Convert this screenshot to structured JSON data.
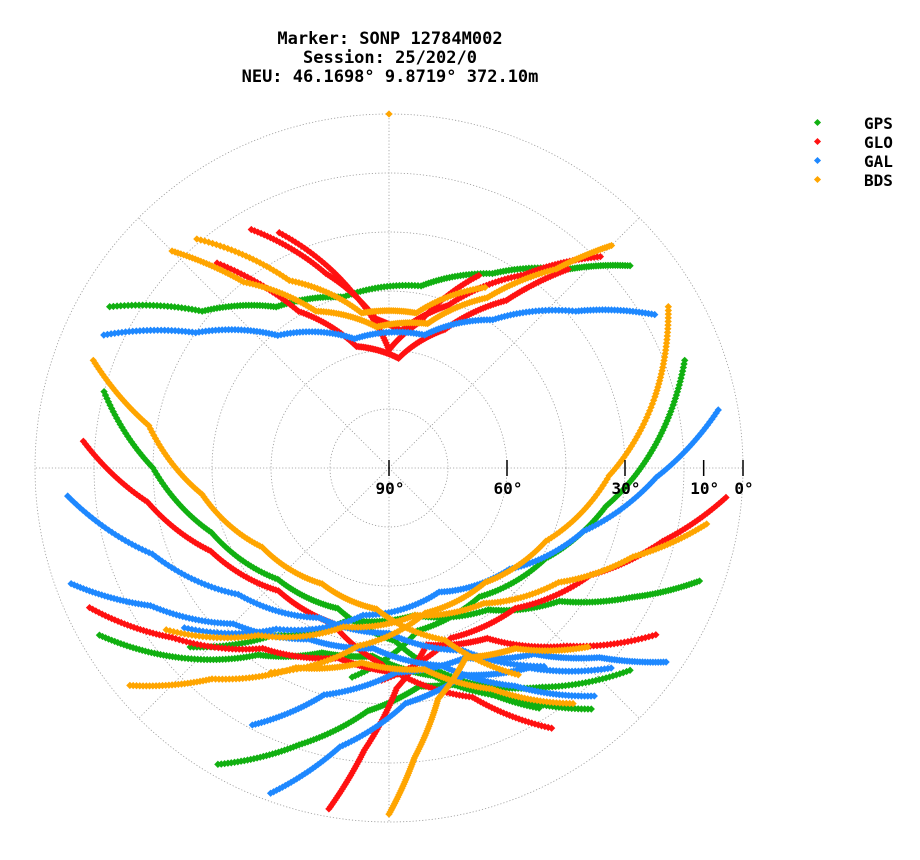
{
  "title_lines": [
    "Marker: SONP 12784M002",
    "Session: 25/202/0",
    "NEU: 46.1698° 9.8719° 372.10m"
  ],
  "legend": [
    {
      "name": "GPS",
      "color": "#11b011"
    },
    {
      "name": "GLO",
      "color": "#ff1111"
    },
    {
      "name": "GAL",
      "color": "#1e88ff"
    },
    {
      "name": "BDS",
      "color": "#ffa500"
    }
  ],
  "chart_data": {
    "type": "scatter",
    "projection": "polar",
    "title": "Marker: SONP 12784M002\nSession: 25/202/0\nNEU: 46.1698° 9.8719° 372.10m",
    "radial_axis": "elevation",
    "elevation_tick_labels": [
      "90°",
      "60°",
      "30°",
      "10°",
      "0°"
    ],
    "elevation_ticks": [
      90,
      60,
      30,
      10,
      0
    ],
    "elevation_rings": [
      90,
      75,
      60,
      45,
      30,
      15,
      0
    ],
    "azimuth_spokes_deg": [
      0,
      45,
      90,
      135,
      180,
      225,
      270,
      315
    ],
    "azimuth_orientation": "north-up, clockwise",
    "grid": true,
    "legend_position": "top-right",
    "series": [
      {
        "name": "GPS",
        "color": "#11b011",
        "tracks": [
          [
            [
              300,
              8
            ],
            [
              310,
              28
            ],
            [
              325,
              40
            ],
            [
              345,
              45
            ],
            [
              10,
              43
            ],
            [
              28,
              34
            ],
            [
              42,
              22
            ],
            [
              50,
              10
            ]
          ],
          [
            [
              240,
              5
            ],
            [
              228,
              18
            ],
            [
              215,
              32
            ],
            [
              200,
              40
            ],
            [
              185,
              42
            ],
            [
              168,
              36
            ],
            [
              152,
              24
            ],
            [
              140,
              10
            ]
          ],
          [
            [
              285,
              15
            ],
            [
              270,
              30
            ],
            [
              250,
              42
            ],
            [
              225,
              50
            ],
            [
              200,
              52
            ],
            [
              178,
              46
            ],
            [
              160,
              32
            ],
            [
              148,
              18
            ]
          ],
          [
            [
              210,
              3
            ],
            [
              198,
              16
            ],
            [
              185,
              28
            ],
            [
              172,
              34
            ],
            [
              160,
              32
            ],
            [
              145,
              22
            ],
            [
              130,
              10
            ]
          ],
          [
            [
              110,
              6
            ],
            [
              118,
              20
            ],
            [
              128,
              35
            ],
            [
              145,
              46
            ],
            [
              170,
              52
            ],
            [
              195,
              50
            ],
            [
              215,
              38
            ],
            [
              228,
              22
            ]
          ],
          [
            [
              70,
              10
            ],
            [
              85,
              22
            ],
            [
              100,
              34
            ],
            [
              120,
              44
            ],
            [
              145,
              50
            ],
            [
              170,
              48
            ],
            [
              190,
              36
            ]
          ]
        ]
      },
      {
        "name": "GLO",
        "color": "#ff1111",
        "tracks": [
          [
            [
              330,
              20
            ],
            [
              342,
              38
            ],
            [
              355,
              52
            ],
            [
              5,
              55
            ],
            [
              20,
              46
            ],
            [
              35,
              30
            ],
            [
              45,
              14
            ]
          ],
          [
            [
              335,
              24
            ],
            [
              348,
              44
            ],
            [
              0,
              60
            ],
            [
              12,
              52
            ],
            [
              25,
              36
            ]
          ],
          [
            [
              320,
              22
            ],
            [
              330,
              44
            ],
            [
              345,
              58
            ],
            [
              5,
              62
            ],
            [
              22,
              52
            ],
            [
              35,
              38
            ],
            [
              42,
              22
            ]
          ],
          [
            [
              190,
              2
            ],
            [
              185,
              18
            ],
            [
              178,
              34
            ],
            [
              168,
              44
            ],
            [
              150,
              40
            ],
            [
              135,
              26
            ],
            [
              122,
              10
            ]
          ],
          [
            [
              245,
              6
            ],
            [
              232,
              20
            ],
            [
              215,
              34
            ],
            [
              195,
              40
            ],
            [
              178,
              38
            ],
            [
              160,
              28
            ],
            [
              148,
              12
            ]
          ],
          [
            [
              95,
              4
            ],
            [
              105,
              18
            ],
            [
              118,
              32
            ],
            [
              138,
              42
            ],
            [
              160,
              44
            ],
            [
              182,
              36
            ]
          ],
          [
            [
              275,
              12
            ],
            [
              262,
              28
            ],
            [
              245,
              40
            ],
            [
              222,
              48
            ],
            [
              200,
              48
            ],
            [
              182,
              40
            ]
          ]
        ]
      },
      {
        "name": "GAL",
        "color": "#1e88ff",
        "tracks": [
          [
            [
              295,
              10
            ],
            [
              305,
              30
            ],
            [
              320,
              46
            ],
            [
              345,
              56
            ],
            [
              15,
              55
            ],
            [
              35,
              44
            ],
            [
              50,
              28
            ],
            [
              60,
              12
            ]
          ],
          [
            [
              250,
              4
            ],
            [
              240,
              20
            ],
            [
              225,
              34
            ],
            [
              205,
              42
            ],
            [
              185,
              44
            ],
            [
              165,
              38
            ],
            [
              150,
              26
            ],
            [
              138,
              12
            ]
          ],
          [
            [
              265,
              8
            ],
            [
              250,
              26
            ],
            [
              230,
              40
            ],
            [
              205,
              48
            ],
            [
              180,
              48
            ],
            [
              158,
              40
            ],
            [
              142,
              26
            ]
          ],
          [
            [
              80,
              5
            ],
            [
              92,
              22
            ],
            [
              108,
              38
            ],
            [
              130,
              50
            ],
            [
              158,
              56
            ],
            [
              190,
              52
            ],
            [
              215,
              40
            ],
            [
              232,
              24
            ]
          ],
          [
            [
              200,
              2
            ],
            [
              190,
              18
            ],
            [
              176,
              30
            ],
            [
              160,
              34
            ],
            [
              145,
              28
            ],
            [
              132,
              14
            ]
          ],
          [
            [
              125,
              4
            ],
            [
              132,
              18
            ],
            [
              142,
              30
            ],
            [
              158,
              38
            ],
            [
              178,
              38
            ],
            [
              196,
              30
            ],
            [
              208,
              16
            ]
          ]
        ]
      },
      {
        "name": "BDS",
        "color": "#ffa500",
        "tracks": [
          [
            [
              315,
              12
            ],
            [
              322,
              30
            ],
            [
              335,
              46
            ],
            [
              355,
              54
            ],
            [
              15,
              52
            ],
            [
              30,
              40
            ],
            [
              40,
              24
            ],
            [
              45,
              10
            ]
          ],
          [
            [
              320,
              14
            ],
            [
              332,
              36
            ],
            [
              350,
              50
            ],
            [
              10,
              50
            ],
            [
              28,
              38
            ]
          ],
          [
            [
              290,
              10
            ],
            [
              280,
              28
            ],
            [
              262,
              42
            ],
            [
              238,
              52
            ],
            [
              210,
              56
            ],
            [
              185,
              54
            ],
            [
              162,
              44
            ],
            [
              148,
              28
            ]
          ],
          [
            [
              230,
              4
            ],
            [
              220,
              20
            ],
            [
              205,
              34
            ],
            [
              188,
              40
            ],
            [
              170,
              38
            ],
            [
              155,
              28
            ],
            [
              142,
              14
            ]
          ],
          [
            [
              100,
              8
            ],
            [
              110,
              24
            ],
            [
              124,
              38
            ],
            [
              145,
              48
            ],
            [
              170,
              52
            ],
            [
              196,
              48
            ],
            [
              218,
              36
            ],
            [
              234,
              20
            ]
          ],
          [
            [
              60,
              8
            ],
            [
              75,
              20
            ],
            [
              92,
              34
            ],
            [
              115,
              46
            ],
            [
              140,
              52
            ],
            [
              166,
              52
            ],
            [
              190,
              44
            ],
            [
              210,
              30
            ]
          ],
          [
            [
              180,
              2
            ],
            [
              175,
              16
            ],
            [
              168,
              30
            ],
            [
              158,
              38
            ],
            [
              145,
              34
            ],
            [
              132,
              22
            ]
          ],
          [
            [
              0,
              0
            ]
          ]
        ]
      }
    ]
  }
}
